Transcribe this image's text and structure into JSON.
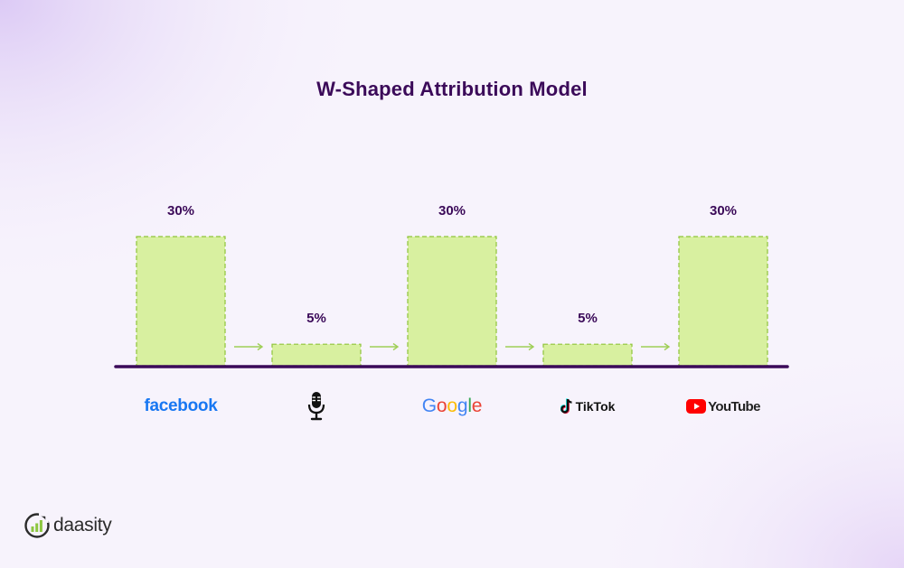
{
  "colors": {
    "title": "#3b0a59",
    "bar_fill": "#d8f0a0",
    "bar_stroke": "#8fc43a",
    "baseline": "#3b0a59",
    "arrow": "#9fcf57",
    "background": "#f7f3fc"
  },
  "chart_data": {
    "type": "bar",
    "title": "W-Shaped Attribution Model",
    "xlabel": "",
    "ylabel": "",
    "ylim": [
      0,
      30
    ],
    "grid": false,
    "categories": [
      "facebook",
      "podcast",
      "Google",
      "TikTok",
      "YouTube"
    ],
    "values": [
      30,
      5,
      30,
      5,
      30
    ],
    "value_labels": [
      "30%",
      "5%",
      "30%",
      "5%",
      "30%"
    ],
    "annotations": [
      "arrow",
      "arrow",
      "arrow",
      "arrow"
    ]
  },
  "brands": {
    "facebook": "facebook",
    "podcast": "microphone-icon",
    "google": [
      "G",
      "o",
      "o",
      "g",
      "l",
      "e"
    ],
    "google_colors": [
      "#4285F4",
      "#EA4335",
      "#FBBC05",
      "#4285F4",
      "#34A853",
      "#EA4335"
    ],
    "tiktok": "TikTok",
    "youtube": "YouTube"
  },
  "logo": {
    "text": "daasity",
    "icon": "daasity-logo-icon"
  }
}
